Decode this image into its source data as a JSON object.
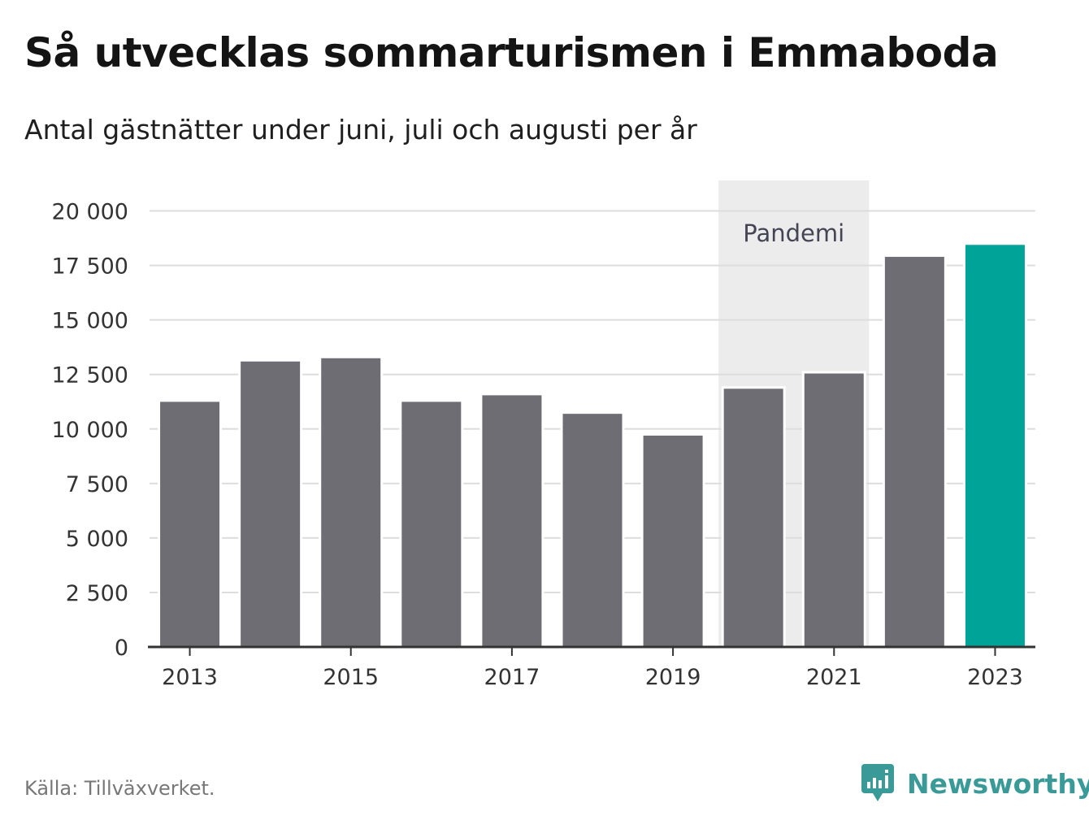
{
  "title": "Så utvecklas sommarturismen i Emmaboda",
  "subtitle": "Antal gästnätter under juni, juli och augusti per år",
  "source": "Källa: Tillväxverket.",
  "brand": {
    "name": "Newsworthy",
    "icon": "newsworthy-logo-icon",
    "color": "#3a9a97"
  },
  "colors": {
    "bar": "#6e6d73",
    "highlight": "#00a398",
    "band": "#ececec",
    "grid": "#dddddd",
    "axis": "#333333"
  },
  "chart_data": {
    "type": "bar",
    "x": [
      2013,
      2014,
      2015,
      2016,
      2017,
      2018,
      2019,
      2020,
      2021,
      2022,
      2023
    ],
    "values": [
      11300,
      13150,
      13300,
      11300,
      11600,
      10750,
      9750,
      11900,
      12600,
      17950,
      18500
    ],
    "highlight_index": 10,
    "xticks": [
      "2013",
      "2015",
      "2017",
      "2019",
      "2021",
      "2023"
    ],
    "yticks": [
      "0",
      "2 500",
      "5 000",
      "7 500",
      "10 000",
      "12 500",
      "15 000",
      "17 500",
      "20 000"
    ],
    "ylim": [
      0,
      21400
    ],
    "grid": true,
    "band": {
      "label": "Pandemi",
      "from": 2020,
      "to": 2021
    }
  }
}
